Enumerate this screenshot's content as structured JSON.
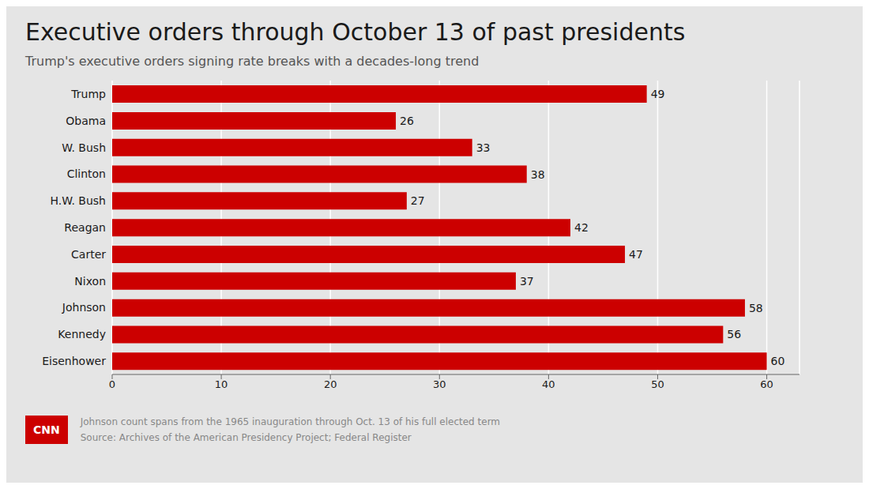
{
  "chart_data": {
    "type": "bar",
    "orientation": "horizontal",
    "title": "Executive orders through October 13 of past presidents",
    "subtitle": "Trump's executive orders signing rate breaks with a decades-long trend",
    "categories": [
      "Trump",
      "Obama",
      "W. Bush",
      "Clinton",
      "H.W. Bush",
      "Reagan",
      "Carter",
      "Nixon",
      "Johnson",
      "Kennedy",
      "Eisenhower"
    ],
    "values": [
      49,
      26,
      33,
      38,
      27,
      42,
      47,
      37,
      58,
      56,
      60
    ],
    "color": "#cc0000",
    "xlim": [
      0,
      63
    ],
    "xticks": [
      0,
      10,
      20,
      30,
      40,
      50,
      60
    ],
    "grid": true,
    "data_labels": true,
    "annotations": [
      "Johnson count spans from the 1965 inauguration through Oct. 13 of his full elected term",
      "Source: Archives of the American Presidency Project; Federal Register",
      "CNN"
    ]
  }
}
